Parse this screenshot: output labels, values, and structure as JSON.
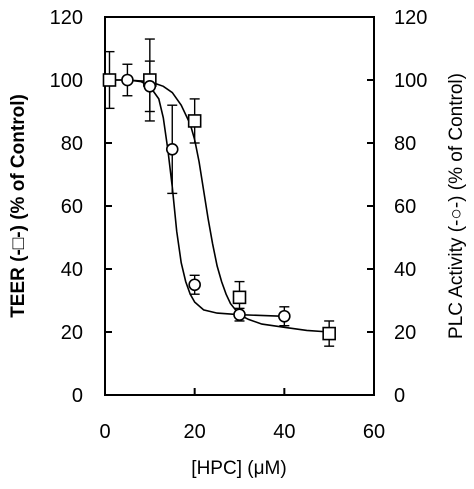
{
  "chart_data": {
    "type": "line",
    "title": "",
    "xlabel": "[HPC] (μM)",
    "ylabel_left": "TEER (-□-) (% of Control)",
    "ylabel_right": "PLC Activity (-○-) (% of Control)",
    "xlim": [
      0,
      60
    ],
    "ylim": [
      0,
      120
    ],
    "x_ticks": [
      "0",
      "20",
      "40",
      "60"
    ],
    "y_ticks_left": [
      "0",
      "20",
      "40",
      "60",
      "80",
      "100",
      "120"
    ],
    "y_ticks_right": [
      "0",
      "20",
      "40",
      "60",
      "80",
      "100",
      "120"
    ],
    "series": [
      {
        "marker": "square",
        "axis": "left",
        "x": [
          1,
          10,
          20,
          30,
          50
        ],
        "y": [
          100,
          100,
          87,
          31,
          19.5
        ],
        "err": [
          9,
          13,
          7,
          5,
          4
        ],
        "curve_x": [
          0,
          5,
          10,
          13,
          15,
          17,
          19,
          20,
          21,
          22,
          23,
          24,
          25,
          26,
          27,
          28,
          30,
          32,
          35,
          40,
          45,
          50
        ],
        "curve_y": [
          100,
          100,
          99.5,
          98,
          96,
          92,
          86,
          81,
          74,
          65,
          56,
          48,
          41,
          36,
          32,
          29,
          25.5,
          24,
          22.5,
          21.5,
          20.5,
          20
        ]
      },
      {
        "marker": "circle",
        "axis": "right",
        "x": [
          5,
          10,
          15,
          20,
          30,
          40
        ],
        "y": [
          100,
          98,
          78,
          35,
          25.5,
          25
        ],
        "err": [
          5,
          8,
          14,
          3,
          2,
          3
        ],
        "curve_x": [
          0,
          5,
          8,
          10,
          12,
          13,
          14,
          15,
          16,
          17,
          18,
          19,
          20,
          22,
          25,
          30,
          40
        ],
        "curve_y": [
          100,
          100,
          99.5,
          98,
          94,
          88,
          78,
          66,
          52,
          42,
          36,
          32,
          29.5,
          27,
          26,
          25.5,
          25
        ]
      }
    ]
  }
}
